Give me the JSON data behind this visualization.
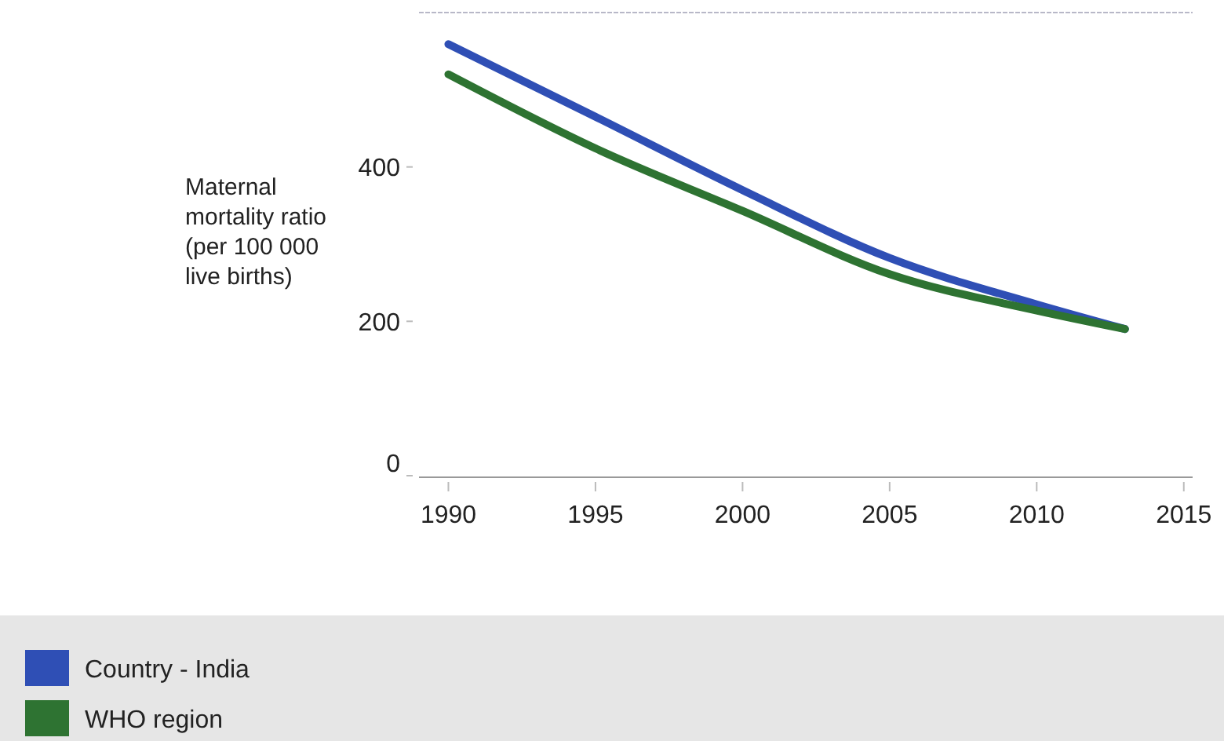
{
  "chart_data": {
    "type": "line",
    "ylabel": "Maternal mortality ratio (per 100 000 live births)",
    "x": [
      1990,
      1995,
      2000,
      2005,
      2010,
      2013
    ],
    "series": [
      {
        "name": "Country - India",
        "color": "#2f4fb5",
        "values": [
          559,
          465,
          370,
          282,
          222,
          190
        ]
      },
      {
        "name": "WHO region",
        "color": "#2e7332",
        "values": [
          520,
          424,
          343,
          261,
          214,
          190
        ]
      }
    ],
    "xlim": [
      1989,
      2015.3
    ],
    "ylim": [
      0,
      600
    ],
    "xticks": [
      1990,
      1995,
      2000,
      2005,
      2010,
      2015
    ],
    "yticks": [
      0,
      200,
      400
    ],
    "grid": false,
    "legend": "bottom",
    "marker": "none",
    "line_style": "solid"
  }
}
